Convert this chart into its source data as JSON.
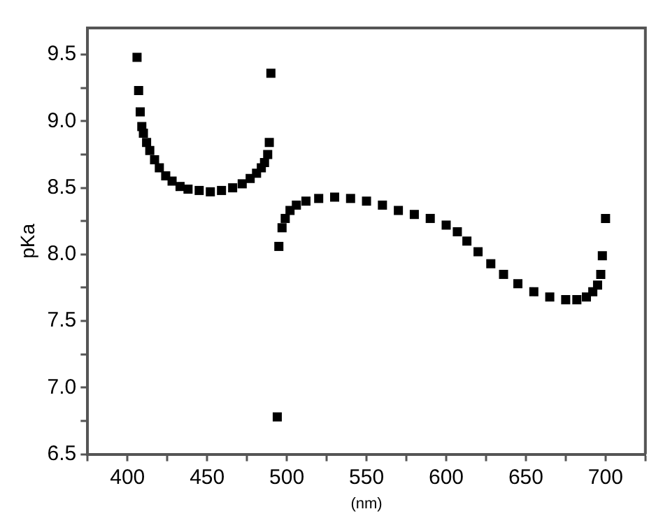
{
  "chart_data": {
    "type": "scatter",
    "xlabel": "(nm)",
    "ylabel": "pKa",
    "marker": "square",
    "grid": false,
    "legend": false,
    "xlim": [
      375,
      725
    ],
    "ylim": [
      6.5,
      9.7
    ],
    "xticks": [
      {
        "value": 375,
        "label": null
      },
      400,
      {
        "value": 425,
        "label": null
      },
      450,
      {
        "value": 475,
        "label": null
      },
      500,
      {
        "value": 525,
        "label": null
      },
      550,
      {
        "value": 575,
        "label": null
      },
      600,
      {
        "value": 625,
        "label": null
      },
      650,
      {
        "value": 675,
        "label": null
      },
      700,
      {
        "value": 725,
        "label": null
      }
    ],
    "yticks": [
      6.5,
      {
        "value": 6.75,
        "label": null
      },
      "7.0",
      {
        "value": 7.25,
        "label": null
      },
      7.5,
      {
        "value": 7.75,
        "label": null
      },
      "8.0",
      {
        "value": 8.25,
        "label": null
      },
      8.5,
      {
        "value": 8.75,
        "label": null
      },
      "9.0",
      {
        "value": 9.25,
        "label": null
      },
      9.5
    ],
    "series": [
      {
        "color": "#000000",
        "x": [
          406,
          407,
          408,
          409,
          410,
          412,
          414,
          417,
          420,
          424,
          428,
          433,
          438,
          445,
          452,
          459,
          466,
          472,
          477,
          481,
          484,
          486,
          488,
          489,
          490,
          494,
          495,
          497,
          499,
          502,
          506,
          512,
          520,
          530,
          540,
          550,
          560,
          570,
          580,
          590,
          600,
          607,
          613,
          620,
          628,
          636,
          645,
          655,
          665,
          675,
          682,
          688,
          692,
          695,
          697,
          698,
          700
        ],
        "values": [
          9.48,
          9.23,
          9.07,
          8.96,
          8.91,
          8.84,
          8.78,
          8.71,
          8.65,
          8.59,
          8.55,
          8.51,
          8.49,
          8.48,
          8.47,
          8.48,
          8.5,
          8.53,
          8.57,
          8.61,
          8.65,
          8.69,
          8.75,
          8.84,
          9.36,
          6.78,
          8.06,
          8.2,
          8.27,
          8.33,
          8.37,
          8.4,
          8.42,
          8.43,
          8.42,
          8.4,
          8.37,
          8.33,
          8.3,
          8.27,
          8.22,
          8.17,
          8.1,
          8.02,
          7.93,
          7.85,
          7.78,
          7.72,
          7.68,
          7.66,
          7.66,
          7.68,
          7.72,
          7.77,
          7.85,
          7.99,
          8.27
        ]
      }
    ]
  }
}
